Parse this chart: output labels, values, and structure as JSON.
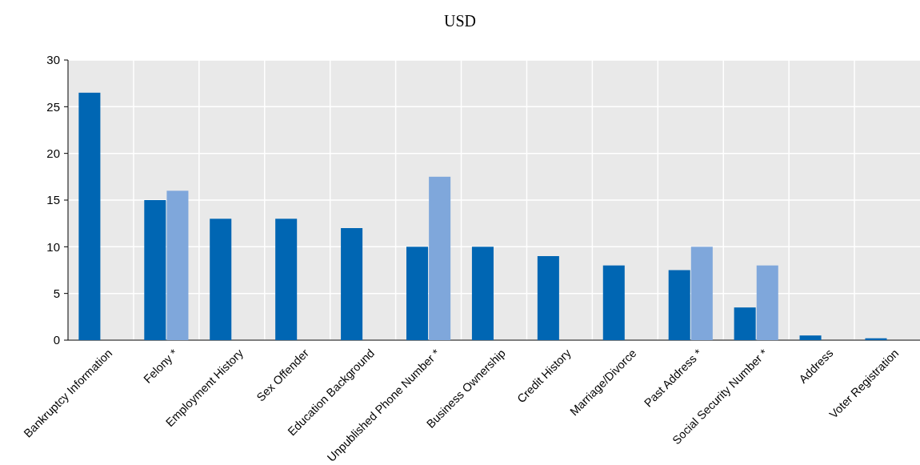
{
  "chart_data": {
    "type": "bar",
    "title": "USD",
    "categories": [
      "Bankruptcy Information",
      "Felony *",
      "Employment History",
      "Sex Offender",
      "Education Background",
      "Unpublished Phone Number *",
      "Business Ownership",
      "Credit History",
      "Marriage/Divorce",
      "Past Address *",
      "Social Security Number *",
      "Address",
      "Voter Registration"
    ],
    "series": [
      {
        "color": "#0066b3",
        "values": [
          26.5,
          15,
          13,
          13,
          12,
          10,
          10,
          9,
          8,
          7.5,
          3.5,
          0.5,
          0.2
        ]
      },
      {
        "color": "#7fa7db",
        "values": [
          null,
          16,
          null,
          null,
          null,
          17.5,
          null,
          null,
          null,
          10,
          8,
          null,
          null
        ]
      }
    ],
    "ylim": [
      0,
      30
    ],
    "yticks": [
      0,
      5,
      10,
      15,
      20,
      25,
      30
    ],
    "grid": true
  }
}
